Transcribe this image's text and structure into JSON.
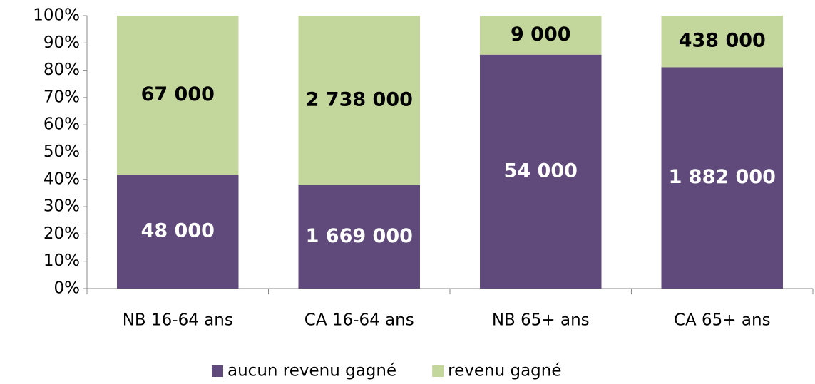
{
  "chart_data": {
    "type": "bar",
    "stacking": "percent",
    "categories": [
      "NB 16-64 ans",
      "CA 16-64 ans",
      "NB 65+ ans",
      "CA 65+ ans"
    ],
    "series": [
      {
        "name": "aucun revenu gagné",
        "color": "#604a7b",
        "label_color": "#ffffff",
        "values": [
          48000,
          1669000,
          54000,
          1882000
        ],
        "value_labels": [
          "48 000",
          "1 669 000",
          "54 000",
          "1 882 000"
        ]
      },
      {
        "name": "revenu gagné",
        "color": "#c3d69b",
        "label_color": "#000000",
        "values": [
          67000,
          2738000,
          9000,
          438000
        ],
        "value_labels": [
          "67 000",
          "2 738 000",
          "9 000",
          "438 000"
        ]
      }
    ],
    "ylim": [
      0,
      100
    ],
    "yticks": [
      {
        "value": 0,
        "label": "0%"
      },
      {
        "value": 10,
        "label": "10%"
      },
      {
        "value": 20,
        "label": "20%"
      },
      {
        "value": 30,
        "label": "30%"
      },
      {
        "value": 40,
        "label": "40%"
      },
      {
        "value": 50,
        "label": "50%"
      },
      {
        "value": 60,
        "label": "60%"
      },
      {
        "value": 70,
        "label": "70%"
      },
      {
        "value": 80,
        "label": "80%"
      },
      {
        "value": 90,
        "label": "90%"
      },
      {
        "value": 100,
        "label": "100%"
      }
    ],
    "grid": false,
    "legend": "bottom"
  }
}
